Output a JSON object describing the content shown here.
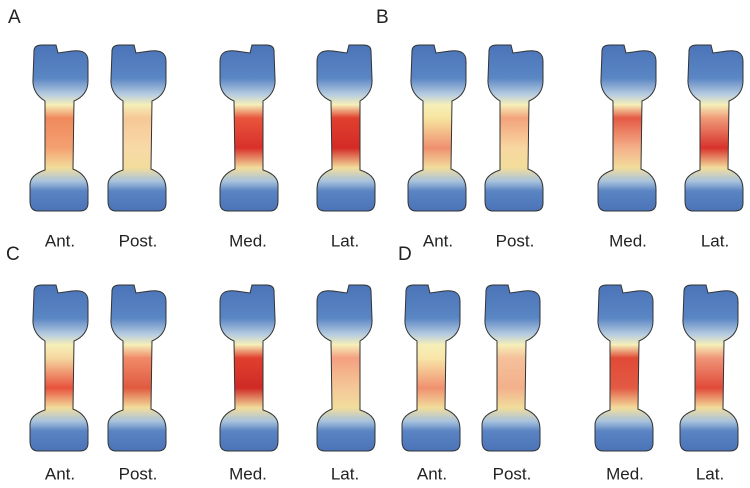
{
  "panels": [
    {
      "label": "A",
      "views": [
        "Ant.",
        "Post.",
        "Med.",
        "Lat."
      ]
    },
    {
      "label": "B",
      "views": [
        "Ant.",
        "Post.",
        "Med.",
        "Lat."
      ]
    },
    {
      "label": "C",
      "views": [
        "Ant.",
        "Post.",
        "Med.",
        "Lat."
      ]
    },
    {
      "label": "D",
      "views": [
        "Ant.",
        "Post.",
        "Med.",
        "Lat."
      ]
    }
  ]
}
